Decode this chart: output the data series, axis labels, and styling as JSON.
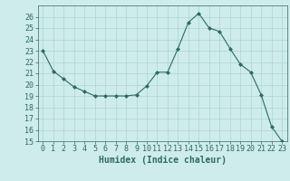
{
  "x": [
    0,
    1,
    2,
    3,
    4,
    5,
    6,
    7,
    8,
    9,
    10,
    11,
    12,
    13,
    14,
    15,
    16,
    17,
    18,
    19,
    20,
    21,
    22,
    23
  ],
  "y": [
    23.0,
    21.2,
    20.5,
    19.8,
    19.4,
    19.0,
    19.0,
    19.0,
    19.0,
    19.1,
    19.9,
    21.1,
    21.1,
    23.2,
    25.5,
    26.3,
    25.0,
    24.7,
    23.2,
    21.8,
    21.1,
    19.1,
    16.3,
    15.0
  ],
  "line_color": "#2e6b5e",
  "marker": "D",
  "marker_size": 2.0,
  "bg_color": "#ceecea",
  "grid_color": "#aed4d1",
  "xlabel": "Humidex (Indice chaleur)",
  "xlim": [
    -0.5,
    23.5
  ],
  "ylim": [
    15,
    27
  ],
  "yticks": [
    15,
    16,
    17,
    18,
    19,
    20,
    21,
    22,
    23,
    24,
    25,
    26
  ],
  "xticks": [
    0,
    1,
    2,
    3,
    4,
    5,
    6,
    7,
    8,
    9,
    10,
    11,
    12,
    13,
    14,
    15,
    16,
    17,
    18,
    19,
    20,
    21,
    22,
    23
  ],
  "label_fontsize": 7,
  "tick_fontsize": 6
}
